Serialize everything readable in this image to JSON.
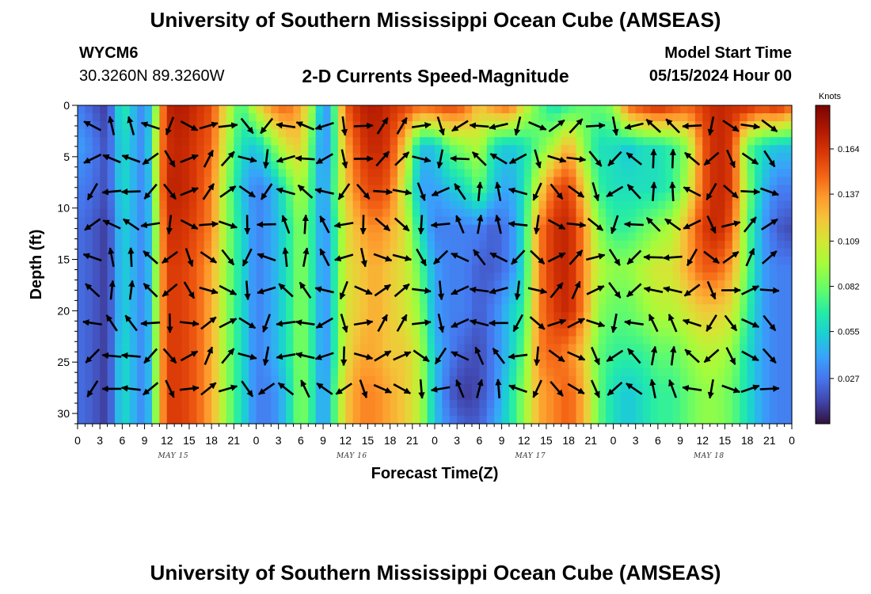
{
  "header": {
    "title": "University of Southern Mississippi Ocean Cube (AMSEAS)",
    "station_id": "WYCM6",
    "station_coords": "30.3260N  89.3260W",
    "subtitle": "2-D Currents Speed-Magnitude",
    "model_label": "Model Start Time",
    "model_time": "05/15/2024 Hour 00"
  },
  "footer": {
    "title": "University of Southern Mississippi Ocean Cube (AMSEAS)"
  },
  "chart_data": {
    "type": "heatmap",
    "xlabel": "Forecast Time(Z)",
    "ylabel": "Depth (ft)",
    "x_tick_labels": [
      "0",
      "3",
      "6",
      "9",
      "12",
      "15",
      "18",
      "21",
      "0",
      "3",
      "6",
      "9",
      "12",
      "15",
      "18",
      "21",
      "0",
      "3",
      "6",
      "9",
      "12",
      "15",
      "18",
      "21",
      "0",
      "3",
      "6",
      "9",
      "12",
      "15",
      "18",
      "21",
      "0"
    ],
    "day_labels": [
      {
        "text": "MAY 15",
        "hour": 12
      },
      {
        "text": "MAY 16",
        "hour": 36
      },
      {
        "text": "MAY 17",
        "hour": 60
      },
      {
        "text": "MAY 18",
        "hour": 84
      }
    ],
    "xlim": [
      0,
      96
    ],
    "ylim": [
      0,
      31
    ],
    "y_ticks": [
      0,
      5,
      10,
      15,
      20,
      25,
      30
    ],
    "colorbar": {
      "unit": "Knots",
      "range": [
        0.0,
        0.19
      ],
      "tick_values": [
        0.027,
        0.055,
        0.082,
        0.109,
        0.137,
        0.164
      ],
      "tick_labels": [
        "0.027",
        "0.055",
        "0.082",
        "0.109",
        "0.137",
        "0.164"
      ]
    },
    "speed_profile": {
      "hours": [
        0,
        2,
        4,
        6,
        8,
        9,
        10,
        11,
        12,
        14,
        16,
        18,
        20,
        22,
        24,
        26,
        28,
        30,
        32,
        33,
        34,
        36,
        38,
        40,
        42,
        44,
        46,
        48,
        50,
        52,
        54,
        56,
        58,
        60,
        62,
        64,
        66,
        68,
        70,
        72,
        74,
        76,
        78,
        80,
        82,
        84,
        86,
        88,
        90,
        92,
        94,
        96
      ],
      "depths": [
        0,
        4,
        8,
        12,
        16,
        20,
        24,
        28,
        31
      ],
      "values_knots": [
        [
          0.03,
          0.02,
          0.01,
          0.07,
          0.04,
          0.03,
          0.06,
          0.12,
          0.17,
          0.175,
          0.165,
          0.155,
          0.11,
          0.07,
          0.11,
          0.14,
          0.15,
          0.13,
          0.08,
          0.03,
          0.05,
          0.15,
          0.17,
          0.175,
          0.165,
          0.16,
          0.15,
          0.155,
          0.16,
          0.15,
          0.12,
          0.14,
          0.15,
          0.11,
          0.08,
          0.06,
          0.07,
          0.08,
          0.08,
          0.09,
          0.15,
          0.16,
          0.17,
          0.16,
          0.15,
          0.16,
          0.17,
          0.165,
          0.17,
          0.16,
          0.17,
          0.15
        ],
        [
          0.04,
          0.03,
          0.015,
          0.06,
          0.04,
          0.03,
          0.07,
          0.13,
          0.165,
          0.17,
          0.16,
          0.15,
          0.1,
          0.06,
          0.05,
          0.08,
          0.11,
          0.12,
          0.06,
          0.03,
          0.05,
          0.13,
          0.16,
          0.17,
          0.16,
          0.12,
          0.05,
          0.05,
          0.08,
          0.09,
          0.1,
          0.06,
          0.05,
          0.06,
          0.08,
          0.1,
          0.13,
          0.09,
          0.06,
          0.06,
          0.05,
          0.06,
          0.06,
          0.07,
          0.09,
          0.15,
          0.17,
          0.16,
          0.08,
          0.06,
          0.05,
          0.05
        ],
        [
          0.03,
          0.025,
          0.015,
          0.06,
          0.04,
          0.03,
          0.06,
          0.13,
          0.17,
          0.17,
          0.16,
          0.14,
          0.09,
          0.05,
          0.03,
          0.04,
          0.07,
          0.1,
          0.06,
          0.03,
          0.06,
          0.12,
          0.15,
          0.16,
          0.15,
          0.1,
          0.04,
          0.04,
          0.05,
          0.06,
          0.08,
          0.05,
          0.04,
          0.06,
          0.11,
          0.15,
          0.16,
          0.12,
          0.07,
          0.06,
          0.06,
          0.06,
          0.06,
          0.07,
          0.1,
          0.15,
          0.17,
          0.16,
          0.09,
          0.05,
          0.03,
          0.03
        ],
        [
          0.025,
          0.02,
          0.01,
          0.055,
          0.04,
          0.03,
          0.06,
          0.12,
          0.165,
          0.165,
          0.155,
          0.14,
          0.09,
          0.06,
          0.03,
          0.04,
          0.06,
          0.09,
          0.06,
          0.03,
          0.05,
          0.11,
          0.13,
          0.14,
          0.13,
          0.11,
          0.06,
          0.03,
          0.03,
          0.03,
          0.03,
          0.02,
          0.03,
          0.06,
          0.14,
          0.165,
          0.17,
          0.14,
          0.09,
          0.07,
          0.07,
          0.08,
          0.09,
          0.1,
          0.13,
          0.16,
          0.17,
          0.15,
          0.08,
          0.04,
          0.02,
          0.015
        ],
        [
          0.025,
          0.02,
          0.01,
          0.055,
          0.04,
          0.03,
          0.06,
          0.12,
          0.16,
          0.16,
          0.15,
          0.13,
          0.09,
          0.06,
          0.03,
          0.04,
          0.06,
          0.09,
          0.06,
          0.03,
          0.05,
          0.11,
          0.12,
          0.13,
          0.12,
          0.11,
          0.08,
          0.04,
          0.03,
          0.03,
          0.02,
          0.02,
          0.03,
          0.06,
          0.14,
          0.165,
          0.17,
          0.14,
          0.1,
          0.09,
          0.09,
          0.1,
          0.11,
          0.11,
          0.13,
          0.15,
          0.15,
          0.13,
          0.08,
          0.04,
          0.03,
          0.03
        ],
        [
          0.025,
          0.02,
          0.01,
          0.055,
          0.04,
          0.03,
          0.06,
          0.12,
          0.16,
          0.16,
          0.15,
          0.13,
          0.09,
          0.06,
          0.03,
          0.04,
          0.06,
          0.09,
          0.06,
          0.03,
          0.05,
          0.11,
          0.12,
          0.13,
          0.12,
          0.11,
          0.09,
          0.04,
          0.03,
          0.03,
          0.02,
          0.03,
          0.05,
          0.07,
          0.14,
          0.16,
          0.17,
          0.14,
          0.09,
          0.08,
          0.08,
          0.09,
          0.1,
          0.1,
          0.11,
          0.12,
          0.12,
          0.11,
          0.07,
          0.04,
          0.03,
          0.03
        ],
        [
          0.025,
          0.02,
          0.01,
          0.06,
          0.04,
          0.03,
          0.06,
          0.12,
          0.16,
          0.16,
          0.15,
          0.13,
          0.09,
          0.06,
          0.03,
          0.04,
          0.06,
          0.09,
          0.06,
          0.03,
          0.05,
          0.11,
          0.13,
          0.13,
          0.12,
          0.12,
          0.1,
          0.05,
          0.03,
          0.02,
          0.015,
          0.03,
          0.05,
          0.08,
          0.14,
          0.15,
          0.14,
          0.12,
          0.08,
          0.07,
          0.07,
          0.07,
          0.08,
          0.08,
          0.09,
          0.1,
          0.1,
          0.09,
          0.06,
          0.04,
          0.03,
          0.03
        ],
        [
          0.025,
          0.02,
          0.01,
          0.06,
          0.04,
          0.03,
          0.06,
          0.12,
          0.16,
          0.16,
          0.15,
          0.13,
          0.09,
          0.06,
          0.03,
          0.03,
          0.05,
          0.09,
          0.06,
          0.03,
          0.06,
          0.12,
          0.14,
          0.14,
          0.13,
          0.12,
          0.1,
          0.05,
          0.02,
          0.01,
          0.015,
          0.03,
          0.06,
          0.09,
          0.13,
          0.14,
          0.15,
          0.13,
          0.08,
          0.06,
          0.05,
          0.06,
          0.07,
          0.07,
          0.08,
          0.09,
          0.09,
          0.08,
          0.06,
          0.04,
          0.03,
          0.03
        ],
        [
          0.025,
          0.02,
          0.01,
          0.06,
          0.04,
          0.03,
          0.06,
          0.12,
          0.16,
          0.16,
          0.15,
          0.13,
          0.09,
          0.06,
          0.03,
          0.03,
          0.05,
          0.09,
          0.06,
          0.03,
          0.06,
          0.12,
          0.14,
          0.14,
          0.13,
          0.12,
          0.1,
          0.05,
          0.03,
          0.02,
          0.02,
          0.04,
          0.06,
          0.09,
          0.13,
          0.14,
          0.15,
          0.13,
          0.08,
          0.06,
          0.05,
          0.06,
          0.07,
          0.07,
          0.08,
          0.09,
          0.09,
          0.08,
          0.06,
          0.04,
          0.03,
          0.03
        ]
      ]
    }
  }
}
